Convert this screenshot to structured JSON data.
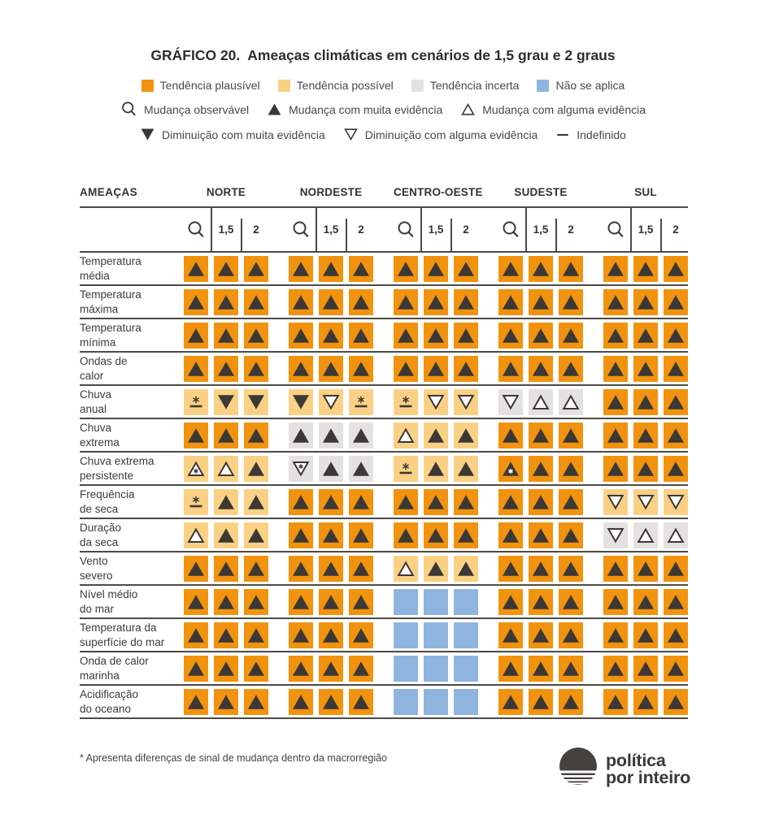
{
  "title": {
    "prefix": "GRÁFICO 20.",
    "text": "Ameaças climáticas em cenários de 1,5 grau e 2 graus"
  },
  "colors": {
    "P": "#F1930E",
    "S": "#FAD184",
    "I": "#E4E2E0",
    "N": "#8FB5DF",
    "dark": "#3B3835",
    "line": "#4D4A46"
  },
  "legend": {
    "swatches": [
      {
        "key": "P",
        "label": "Tendência plausível"
      },
      {
        "key": "S",
        "label": "Tendência possível"
      },
      {
        "key": "I",
        "label": "Tendência incerta"
      },
      {
        "key": "N",
        "label": "Não se aplica"
      }
    ],
    "icons_row2": [
      {
        "icon": "magnifier",
        "label": "Mudança observável"
      },
      {
        "icon": "UF",
        "label": "Mudança com muita evidência"
      },
      {
        "icon": "UO",
        "label": "Mudança com alguma evidência"
      }
    ],
    "icons_row3": [
      {
        "icon": "DF",
        "label": "Diminuição com muita evidência"
      },
      {
        "icon": "DO",
        "label": "Diminuição com alguma evidência"
      },
      {
        "icon": "dash",
        "label": "Indefinido"
      }
    ]
  },
  "chart_data": {
    "type": "table",
    "title": "GRÁFICO 20. Ameaças climáticas em cenários de 1,5 grau e 2 graus",
    "threats_header": "AMEAÇAS",
    "column_groups": [
      "NORTE",
      "NORDESTE",
      "CENTRO-OESTE",
      "SUDESTE",
      "SUL"
    ],
    "sub_columns": [
      "observável",
      "1,5",
      "2"
    ],
    "scenario_labels": [
      "1,5",
      "2"
    ],
    "cell_encoding": {
      "P": "Tendência plausível (laranja)",
      "S": "Tendência possível (laranja claro)",
      "I": "Tendência incerta (cinza)",
      "N": "Não se aplica (azul)",
      "UF": "Mudança com muita evidência (triângulo cheio para cima)",
      "UO": "Mudança com alguma evidência (triângulo vazado para cima)",
      "DF": "Diminuição com muita evidência (triângulo cheio para baixo)",
      "DO": "Diminuição com alguma evidência (triângulo vazado para baixo)",
      "DS": "Indefinido (traço com asterisco)",
      "UOS": "Mudança com alguma evidência com asterisco",
      "DOS": "Diminuição com alguma evidência com asterisco",
      "UFS": "Mudança com muita evidência com asterisco",
      "": "sem símbolo"
    },
    "rows": [
      {
        "label": "Temperatura\nmédia",
        "cells": [
          "P:UF",
          "P:UF",
          "P:UF",
          "P:UF",
          "P:UF",
          "P:UF",
          "P:UF",
          "P:UF",
          "P:UF",
          "P:UF",
          "P:UF",
          "P:UF",
          "P:UF",
          "P:UF",
          "P:UF"
        ]
      },
      {
        "label": "Temperatura\nmáxima",
        "cells": [
          "P:UF",
          "P:UF",
          "P:UF",
          "P:UF",
          "P:UF",
          "P:UF",
          "P:UF",
          "P:UF",
          "P:UF",
          "P:UF",
          "P:UF",
          "P:UF",
          "P:UF",
          "P:UF",
          "P:UF"
        ]
      },
      {
        "label": "Temperatura\nmínima",
        "cells": [
          "P:UF",
          "P:UF",
          "P:UF",
          "P:UF",
          "P:UF",
          "P:UF",
          "P:UF",
          "P:UF",
          "P:UF",
          "P:UF",
          "P:UF",
          "P:UF",
          "P:UF",
          "P:UF",
          "P:UF"
        ]
      },
      {
        "label": "Ondas de\ncalor",
        "cells": [
          "P:UF",
          "P:UF",
          "P:UF",
          "P:UF",
          "P:UF",
          "P:UF",
          "P:UF",
          "P:UF",
          "P:UF",
          "P:UF",
          "P:UF",
          "P:UF",
          "P:UF",
          "P:UF",
          "P:UF"
        ]
      },
      {
        "label": "Chuva\nanual",
        "cells": [
          "S:DS",
          "S:DF",
          "S:DF",
          "S:DF",
          "S:DO",
          "S:DS",
          "S:DS",
          "S:DO",
          "S:DO",
          "I:DO",
          "I:UO",
          "I:UO",
          "P:UF",
          "P:UF",
          "P:UF"
        ]
      },
      {
        "label": "Chuva\nextrema",
        "cells": [
          "P:UF",
          "P:UF",
          "P:UF",
          "I:UF",
          "I:UF",
          "I:UF",
          "S:UO",
          "S:UF",
          "S:UF",
          "P:UF",
          "P:UF",
          "P:UF",
          "P:UF",
          "P:UF",
          "P:UF"
        ]
      },
      {
        "label": "Chuva extrema\npersistente",
        "cells": [
          "S:UOS",
          "S:UO",
          "S:UF",
          "I:DOS",
          "I:UF",
          "I:UF",
          "S:DS",
          "S:UF",
          "S:UF",
          "P:UFS",
          "P:UF",
          "P:UF",
          "P:UF",
          "P:UF",
          "P:UF"
        ]
      },
      {
        "label": "Frequência\nde seca",
        "cells": [
          "S:DS",
          "S:UF",
          "S:UF",
          "P:UF",
          "P:UF",
          "P:UF",
          "P:UF",
          "P:UF",
          "P:UF",
          "P:UF",
          "P:UF",
          "P:UF",
          "S:DO",
          "S:DO",
          "S:DO"
        ]
      },
      {
        "label": "Duração\nda seca",
        "cells": [
          "S:UO",
          "S:UF",
          "S:UF",
          "P:UF",
          "P:UF",
          "P:UF",
          "P:UF",
          "P:UF",
          "P:UF",
          "P:UF",
          "P:UF",
          "P:UF",
          "I:DO",
          "I:UO",
          "I:UO"
        ]
      },
      {
        "label": "Vento\nsevero",
        "cells": [
          "P:UF",
          "P:UF",
          "P:UF",
          "P:UF",
          "P:UF",
          "P:UF",
          "S:UO",
          "S:UF",
          "S:UF",
          "P:UF",
          "P:UF",
          "P:UF",
          "P:UF",
          "P:UF",
          "P:UF"
        ]
      },
      {
        "label": "Nível médio\ndo mar",
        "cells": [
          "P:UF",
          "P:UF",
          "P:UF",
          "P:UF",
          "P:UF",
          "P:UF",
          "N:",
          "N:",
          "N:",
          "P:UF",
          "P:UF",
          "P:UF",
          "P:UF",
          "P:UF",
          "P:UF"
        ]
      },
      {
        "label": "Temperatura da\nsuperfície do mar",
        "cells": [
          "P:UF",
          "P:UF",
          "P:UF",
          "P:UF",
          "P:UF",
          "P:UF",
          "N:",
          "N:",
          "N:",
          "P:UF",
          "P:UF",
          "P:UF",
          "P:UF",
          "P:UF",
          "P:UF"
        ]
      },
      {
        "label": "Onda de calor\nmarinha",
        "cells": [
          "P:UF",
          "P:UF",
          "P:UF",
          "P:UF",
          "P:UF",
          "P:UF",
          "N:",
          "N:",
          "N:",
          "P:UF",
          "P:UF",
          "P:UF",
          "P:UF",
          "P:UF",
          "P:UF"
        ]
      },
      {
        "label": "Acidificação\ndo oceano",
        "cells": [
          "P:UF",
          "P:UF",
          "P:UF",
          "P:UF",
          "P:UF",
          "P:UF",
          "N:",
          "N:",
          "N:",
          "P:UF",
          "P:UF",
          "P:UF",
          "P:UF",
          "P:UF",
          "P:UF"
        ]
      }
    ]
  },
  "footnote": "* Apresenta diferenças de sinal de mudança dentro da macrorregião",
  "logo": {
    "line1": "política",
    "line2": "por inteiro"
  }
}
